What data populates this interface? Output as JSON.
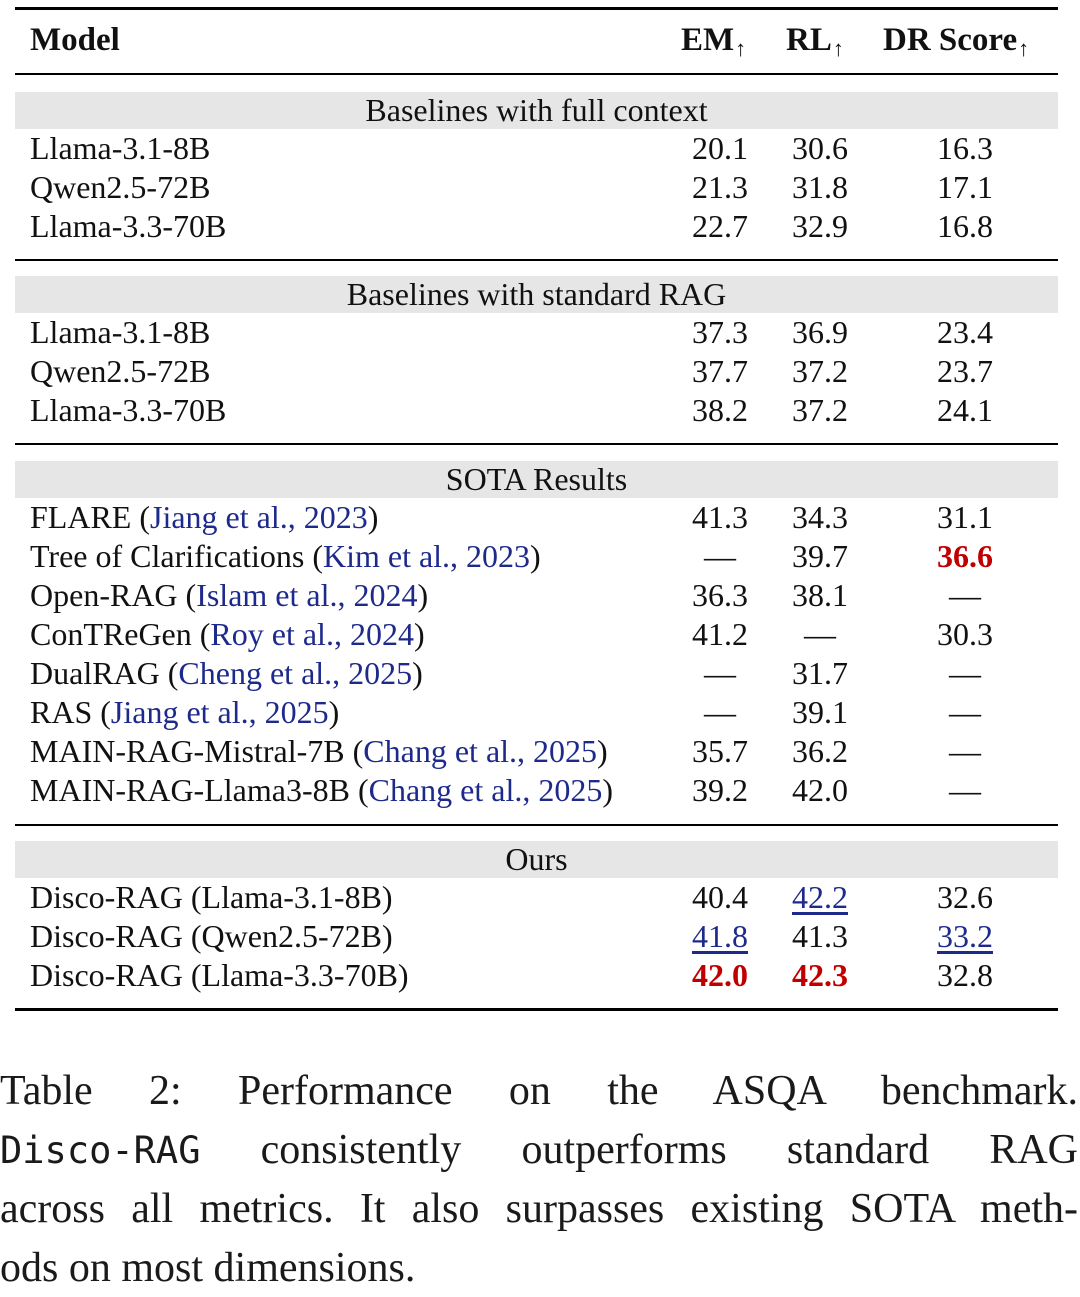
{
  "table": {
    "headers": {
      "model": "Model",
      "em": "EM",
      "rl": "RL",
      "dr": "DR Score",
      "arrow": "↑"
    },
    "sections": [
      {
        "title": "Baselines with full context",
        "rows": [
          {
            "model": "Llama-3.1-8B",
            "em": "20.1",
            "rl": "30.6",
            "dr": "16.3"
          },
          {
            "model": "Qwen2.5-72B",
            "em": "21.3",
            "rl": "31.8",
            "dr": "17.1"
          },
          {
            "model": "Llama-3.3-70B",
            "em": "22.7",
            "rl": "32.9",
            "dr": "16.8"
          }
        ]
      },
      {
        "title": "Baselines with standard RAG",
        "rows": [
          {
            "model": "Llama-3.1-8B",
            "em": "37.3",
            "rl": "36.9",
            "dr": "23.4"
          },
          {
            "model": "Qwen2.5-72B",
            "em": "37.7",
            "rl": "37.2",
            "dr": "23.7"
          },
          {
            "model": "Llama-3.3-70B",
            "em": "38.2",
            "rl": "37.2",
            "dr": "24.1"
          }
        ]
      },
      {
        "title": "SOTA Results",
        "rows": [
          {
            "model": "FLARE",
            "cite": "Jiang et al., 2023",
            "em": "41.3",
            "rl": "34.3",
            "dr": "31.1"
          },
          {
            "model": "Tree of Clarifications",
            "cite": "Kim et al., 2023",
            "em": "—",
            "rl": "39.7",
            "dr": "36.6"
          },
          {
            "model": "Open-RAG",
            "cite": "Islam et al., 2024",
            "em": "36.3",
            "rl": "38.1",
            "dr": "—"
          },
          {
            "model": "ConTReGen",
            "cite": "Roy et al., 2024",
            "em": "41.2",
            "rl": "—",
            "dr": "30.3"
          },
          {
            "model": "DualRAG",
            "cite": "Cheng et al., 2025",
            "em": "—",
            "rl": "31.7",
            "dr": "—"
          },
          {
            "model": "RAS",
            "cite": "Jiang et al., 2025",
            "em": "—",
            "rl": "39.1",
            "dr": "—"
          },
          {
            "model": "MAIN-RAG-Mistral-7B",
            "cite": "Chang et al., 2025",
            "em": "35.7",
            "rl": "36.2",
            "dr": "—"
          },
          {
            "model": "MAIN-RAG-Llama3-8B",
            "cite": "Chang et al., 2025",
            "em": "39.2",
            "rl": "42.0",
            "dr": "—"
          }
        ]
      },
      {
        "title": "Ours",
        "rows": [
          {
            "model": "Disco-RAG (Llama-3.1-8B)",
            "em": "40.4",
            "rl": "42.2",
            "dr": "32.6"
          },
          {
            "model": "Disco-RAG (Qwen2.5-72B)",
            "em": "41.8",
            "rl": "41.3",
            "dr": "33.2"
          },
          {
            "model": "Disco-RAG (Llama-3.3-70B)",
            "em": "42.0",
            "rl": "42.3",
            "dr": "32.8"
          }
        ]
      }
    ]
  },
  "caption": {
    "line1": "Table 2: Performance on the ASQA benchmark.",
    "line2_mono": "Disco-RAG",
    "line2_rest": " consistently outperforms standard RAG",
    "line3": "across all metrics. It also surpasses existing SOTA meth-",
    "line4": "ods on most dimensions."
  },
  "colors": {
    "best": "#c00000",
    "second": "#1d2a8c",
    "citation": "#1d2a8c",
    "section_band": "#e6e6e6"
  }
}
